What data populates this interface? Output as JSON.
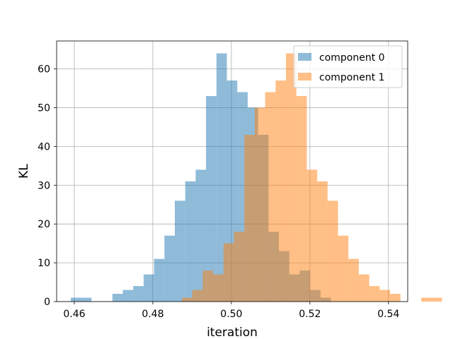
{
  "chart_data": {
    "type": "bar",
    "title": "",
    "xlabel": "iteration",
    "ylabel": "KL",
    "xlim": [
      0.4555,
      0.5449
    ],
    "ylim": [
      0,
      67.2
    ],
    "xticks": [
      0.46,
      0.48,
      0.5,
      0.52,
      0.54
    ],
    "xtick_labels": [
      "0.46",
      "0.48",
      "0.50",
      "0.52",
      "0.54"
    ],
    "yticks": [
      0,
      10,
      20,
      30,
      40,
      50,
      60
    ],
    "ytick_labels": [
      "0",
      "10",
      "20",
      "30",
      "40",
      "50",
      "60"
    ],
    "grid": true,
    "legend_position": "top-right",
    "bin_width": 0.00265,
    "series": [
      {
        "name": "component 0",
        "color": "#1f77b4",
        "opacity": 0.5,
        "bin_start": 0.4591,
        "counts": [
          1,
          1,
          0,
          0,
          2,
          3,
          4,
          7,
          11,
          17,
          26,
          31,
          34,
          53,
          64,
          57,
          54,
          50,
          43,
          18,
          13,
          7,
          8,
          3,
          1
        ]
      },
      {
        "name": "component 1",
        "color": "#ff7f0e",
        "opacity": 0.5,
        "bin_start": 0.4874,
        "counts": [
          1,
          3,
          8,
          7,
          15,
          18,
          43,
          50,
          54,
          57,
          64,
          53,
          34,
          31,
          26,
          17,
          11,
          7,
          4,
          3,
          2,
          0,
          0,
          1,
          1
        ]
      }
    ]
  }
}
